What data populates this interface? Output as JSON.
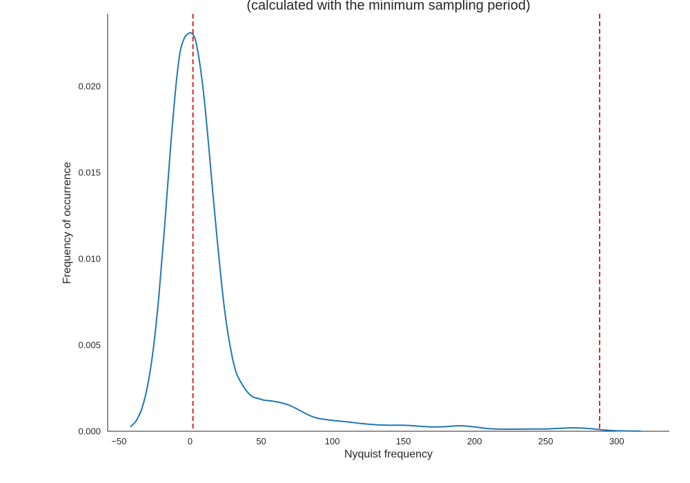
{
  "chart_data": {
    "type": "line",
    "title": "(calculated with the minimum sampling period)",
    "xlabel": "Nyquist frequency",
    "ylabel": "Frequency of occurrence",
    "xlim": [
      -58,
      337
    ],
    "ylim": [
      0,
      0.0242
    ],
    "xticks": [
      -50,
      0,
      50,
      100,
      150,
      200,
      250,
      300
    ],
    "xtick_labels": [
      "−50",
      "0",
      "50",
      "100",
      "150",
      "200",
      "250",
      "300"
    ],
    "yticks": [
      0.0,
      0.005,
      0.01,
      0.015,
      0.02
    ],
    "ytick_labels": [
      "0.000",
      "0.005",
      "0.010",
      "0.015",
      "0.020"
    ],
    "grid": false,
    "colors": {
      "line": "#1f77b4",
      "vline": "#d62728",
      "axis": "#262626"
    },
    "series": [
      {
        "x": [
          -42,
          -38,
          -34,
          -30,
          -26,
          -22,
          -18,
          -14,
          -10,
          -7,
          -4,
          -2,
          0,
          2,
          4,
          7,
          10,
          13,
          16,
          20,
          24,
          28,
          32,
          36,
          40,
          44,
          48,
          52,
          56,
          60,
          65,
          70,
          75,
          80,
          85,
          90,
          100,
          110,
          120,
          130,
          140,
          150,
          160,
          170,
          180,
          190,
          200,
          210,
          220,
          230,
          240,
          250,
          260,
          270,
          280,
          290,
          300,
          310,
          317
        ],
        "y": [
          0.00025,
          0.0006,
          0.0013,
          0.0026,
          0.0047,
          0.0078,
          0.0118,
          0.0162,
          0.02,
          0.022,
          0.0228,
          0.023,
          0.0231,
          0.023,
          0.0226,
          0.0212,
          0.0192,
          0.0166,
          0.0138,
          0.0103,
          0.0072,
          0.005,
          0.0035,
          0.0028,
          0.0023,
          0.002,
          0.0019,
          0.0018,
          0.00177,
          0.00172,
          0.00163,
          0.0015,
          0.0013,
          0.00108,
          0.00088,
          0.00075,
          0.00063,
          0.00055,
          0.00045,
          0.00038,
          0.00035,
          0.00035,
          0.0003,
          0.00025,
          0.00027,
          0.00032,
          0.00025,
          0.00015,
          0.00012,
          0.00012,
          0.00013,
          0.00013,
          0.00017,
          0.0002,
          0.00016,
          8e-05,
          3e-05,
          1e-05,
          1e-05
        ]
      }
    ],
    "vlines": [
      2,
      288
    ]
  }
}
